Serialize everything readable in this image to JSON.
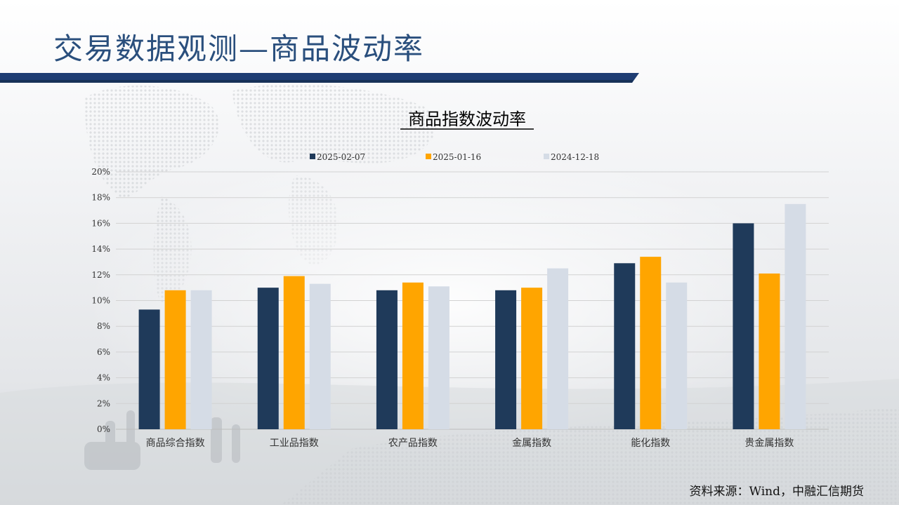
{
  "slide": {
    "title": "交易数据观测—商品波动率",
    "source": "资料来源：Wind，中融汇信期货"
  },
  "colors": {
    "title": "#2a4f7d",
    "title_bar": "#1f3d73",
    "series": [
      "#1f3a5a",
      "#ffa500",
      "#d5dce6"
    ],
    "grid": "#d2d2d2",
    "axis_text": "#333333"
  },
  "chart_data": {
    "type": "bar",
    "title": "商品指数波动率",
    "categories": [
      "商品综合指数",
      "工业品指数",
      "农产品指数",
      "金属指数",
      "能化指数",
      "贵金属指数"
    ],
    "series": [
      {
        "name": "2025-02-07",
        "values": [
          9.3,
          11.0,
          10.8,
          10.8,
          12.9,
          16.0
        ]
      },
      {
        "name": "2025-01-16",
        "values": [
          10.8,
          11.9,
          11.4,
          11.0,
          13.4,
          12.1
        ]
      },
      {
        "name": "2024-12-18",
        "values": [
          10.8,
          11.3,
          11.1,
          12.5,
          11.4,
          17.5
        ]
      }
    ],
    "ylim": [
      0,
      20
    ],
    "yticks": [
      0,
      2,
      4,
      6,
      8,
      10,
      12,
      14,
      16,
      18,
      20
    ],
    "ytick_labels": [
      "0%",
      "2%",
      "4%",
      "6%",
      "8%",
      "10%",
      "12%",
      "14%",
      "16%",
      "18%",
      "20%"
    ],
    "grid": true,
    "legend_position": "top"
  }
}
